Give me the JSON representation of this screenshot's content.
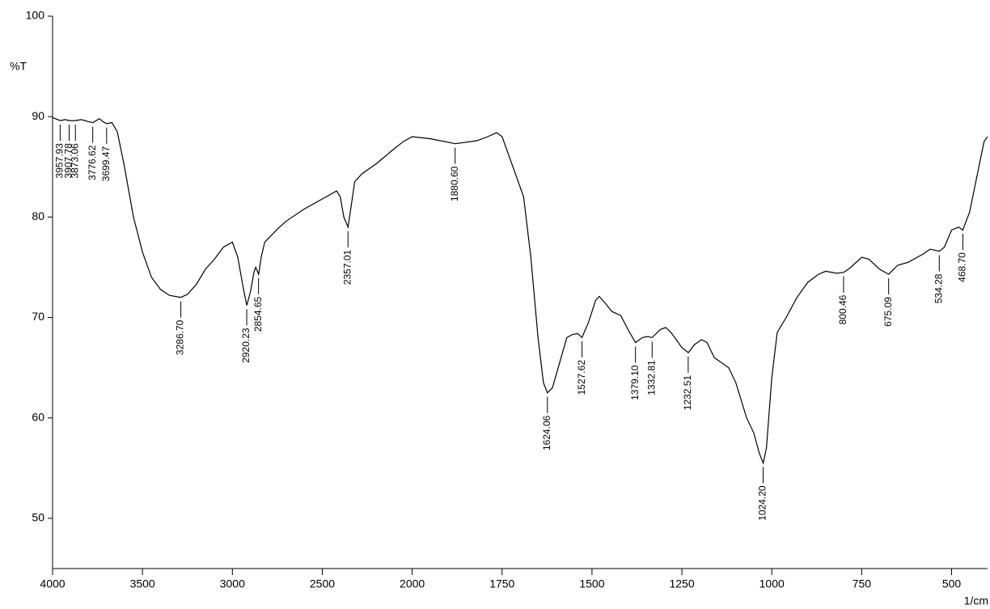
{
  "chart_data": {
    "type": "line",
    "y_label": "%T",
    "x_label": "1/cm",
    "xlim": [
      4000,
      400
    ],
    "ylim": [
      45,
      100
    ],
    "x_scale_break": 2000,
    "x_scale_factor_below_break": 2,
    "xticks": [
      4000,
      3500,
      3000,
      2500,
      2000,
      1750,
      1500,
      1250,
      1000,
      750,
      500
    ],
    "yticks": [
      50,
      60,
      70,
      80,
      90,
      100
    ],
    "color": "#000000",
    "x": [
      4000,
      3957,
      3930,
      3907,
      3873,
      3840,
      3800,
      3776,
      3740,
      3720,
      3699,
      3670,
      3640,
      3600,
      3550,
      3500,
      3450,
      3400,
      3350,
      3287,
      3250,
      3200,
      3150,
      3100,
      3050,
      3000,
      2970,
      2940,
      2920,
      2900,
      2880,
      2870,
      2854,
      2840,
      2820,
      2750,
      2700,
      2600,
      2500,
      2420,
      2400,
      2380,
      2357,
      2340,
      2320,
      2280,
      2200,
      2100,
      2050,
      2000,
      1950,
      1880,
      1820,
      1790,
      1765,
      1750,
      1730,
      1710,
      1690,
      1670,
      1650,
      1635,
      1624,
      1610,
      1590,
      1570,
      1555,
      1540,
      1528,
      1510,
      1490,
      1480,
      1465,
      1445,
      1420,
      1400,
      1379,
      1360,
      1345,
      1333,
      1310,
      1295,
      1280,
      1250,
      1232,
      1215,
      1195,
      1180,
      1160,
      1120,
      1100,
      1070,
      1050,
      1035,
      1024,
      1015,
      1000,
      985,
      960,
      930,
      900,
      870,
      850,
      820,
      800,
      780,
      750,
      730,
      700,
      675,
      650,
      620,
      580,
      560,
      534,
      520,
      500,
      480,
      469,
      450,
      430,
      410,
      400
    ],
    "values": [
      89.9,
      89.6,
      89.7,
      89.6,
      89.6,
      89.7,
      89.5,
      89.4,
      89.8,
      89.5,
      89.3,
      89.4,
      88.5,
      85,
      80,
      76.5,
      74,
      72.8,
      72.2,
      72.0,
      72.3,
      73.3,
      74.8,
      75.8,
      77,
      77.5,
      76,
      73,
      71.2,
      72.5,
      74.5,
      75,
      74.3,
      76,
      77.5,
      78.8,
      79.6,
      80.8,
      81.8,
      82.6,
      82,
      80,
      79.0,
      81,
      83.5,
      84.3,
      85.3,
      86.8,
      87.5,
      88,
      87.8,
      87.3,
      87.6,
      88,
      88.4,
      88,
      86,
      84,
      82,
      76,
      68,
      63.5,
      62.5,
      63,
      65.5,
      68,
      68.3,
      68.4,
      68,
      69.5,
      71.7,
      72.1,
      71.5,
      70.6,
      70.2,
      68.8,
      67.5,
      68,
      68.1,
      68,
      68.8,
      69.0,
      68.5,
      67,
      66.5,
      67.3,
      67.8,
      67.5,
      66,
      65,
      63.5,
      60,
      58.5,
      56.5,
      55.5,
      57,
      64,
      68.5,
      70,
      72,
      73.5,
      74.3,
      74.6,
      74.4,
      74.5,
      75,
      76,
      75.8,
      74.8,
      74.3,
      75.2,
      75.5,
      76.3,
      76.8,
      76.6,
      77,
      78.7,
      79,
      78.7,
      80.5,
      84,
      87.5,
      88
    ],
    "peaks": {
      "x": [
        3957.93,
        3907.78,
        3873.06,
        3776.62,
        3699.47,
        3286.7,
        2920.23,
        2854.65,
        2357.01,
        1880.6,
        1624.06,
        1527.62,
        1379.1,
        1332.81,
        1232.51,
        1024.2,
        800.46,
        675.09,
        534.28,
        468.7
      ],
      "labels": [
        "3957.93",
        "3907.78",
        "3873.06",
        "3776.62",
        "3699.47",
        "3286.70",
        "2920.23",
        "2854.65",
        "2357.01",
        "1880.60",
        "1624.06",
        "1527.62",
        "1379.10",
        "1332.81",
        "1232.51",
        "1024.20",
        "800.46",
        "675.09",
        "534.28",
        "468.70"
      ]
    }
  }
}
